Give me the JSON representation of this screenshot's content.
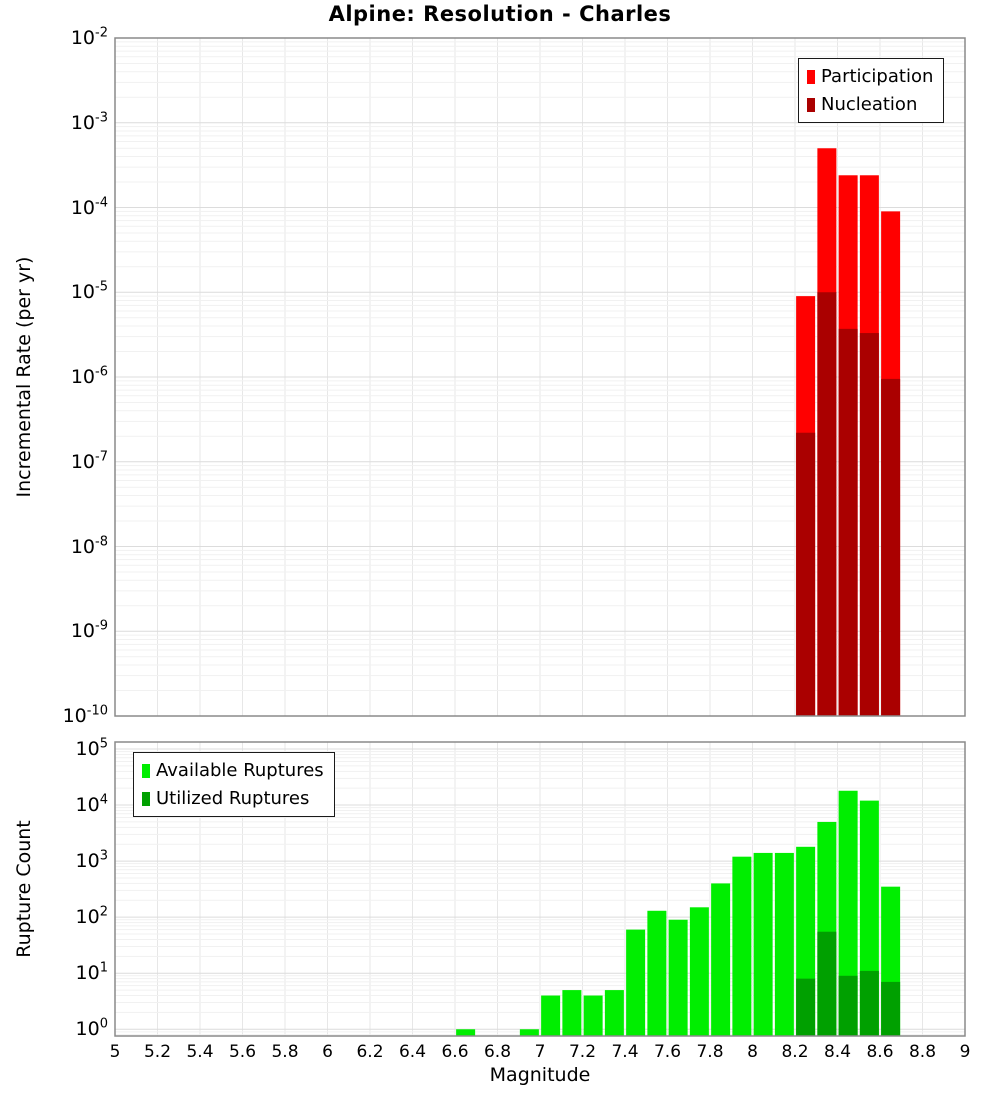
{
  "title": "Alpine: Resolution - Charles",
  "xlabel": "Magnitude",
  "x_tick_labels": [
    "5",
    "5.2",
    "5.4",
    "5.6",
    "5.8",
    "6",
    "6.2",
    "6.4",
    "6.6",
    "6.8",
    "7",
    "7.2",
    "7.4",
    "7.6",
    "7.8",
    "8",
    "8.2",
    "8.4",
    "8.6",
    "8.8",
    "9"
  ],
  "colors": {
    "participation": "#ff0000",
    "nucleation": "#aa0000",
    "available": "#00ee00",
    "utilized": "#00a000",
    "plot_border": "#8a8a8a",
    "grid_major": "#dcdcdc",
    "grid_minor": "#f1f1f1",
    "grid_vertical": "#e7e7e7"
  },
  "chart_data": [
    {
      "type": "bar",
      "panel": "top",
      "title": "Alpine: Resolution - Charles",
      "xlabel": "Magnitude",
      "ylabel": "Incremental Rate (per yr)",
      "y_scale": "log",
      "ylim": [
        1e-10,
        0.01
      ],
      "y_tick_exponents": [
        -2,
        -3,
        -4,
        -5,
        -6,
        -7,
        -8,
        -9,
        -10
      ],
      "xlim": [
        5,
        9
      ],
      "x_tick_step": 0.2,
      "bin_width": 0.1,
      "grid": true,
      "legend_position": "top-right",
      "series": [
        {
          "name": "Participation",
          "color": "#ff0000",
          "x": [
            8.25,
            8.35,
            8.45,
            8.55,
            8.65
          ],
          "values": [
            9e-06,
            0.0005,
            0.00024,
            0.00024,
            9e-05
          ]
        },
        {
          "name": "Nucleation",
          "color": "#aa0000",
          "x": [
            8.25,
            8.35,
            8.45,
            8.55,
            8.65
          ],
          "values": [
            2.2e-07,
            1e-05,
            3.7e-06,
            3.3e-06,
            9.5e-07
          ]
        }
      ]
    },
    {
      "type": "bar",
      "panel": "bottom",
      "xlabel": "Magnitude",
      "ylabel": "Rupture Count",
      "y_scale": "log",
      "ylim": [
        1,
        100000
      ],
      "y_tick_exponents": [
        5,
        4,
        3,
        2,
        1,
        0
      ],
      "xlim": [
        5,
        9
      ],
      "x_tick_step": 0.2,
      "bin_width": 0.1,
      "grid": true,
      "legend_position": "top-left",
      "series": [
        {
          "name": "Available Ruptures",
          "color": "#00ee00",
          "x": [
            6.65,
            6.95,
            7.05,
            7.15,
            7.25,
            7.35,
            7.45,
            7.55,
            7.65,
            7.75,
            7.85,
            7.95,
            8.05,
            8.15,
            8.25,
            8.35,
            8.45,
            8.55,
            8.65
          ],
          "values": [
            1,
            1,
            4,
            5,
            4,
            5,
            60,
            130,
            90,
            150,
            400,
            1200,
            1400,
            1400,
            1800,
            5000,
            18000,
            12000,
            350
          ]
        },
        {
          "name": "Utilized Ruptures",
          "color": "#00a000",
          "x": [
            8.25,
            8.35,
            8.45,
            8.55,
            8.65
          ],
          "values": [
            8,
            55,
            9,
            11,
            7
          ]
        }
      ]
    }
  ]
}
